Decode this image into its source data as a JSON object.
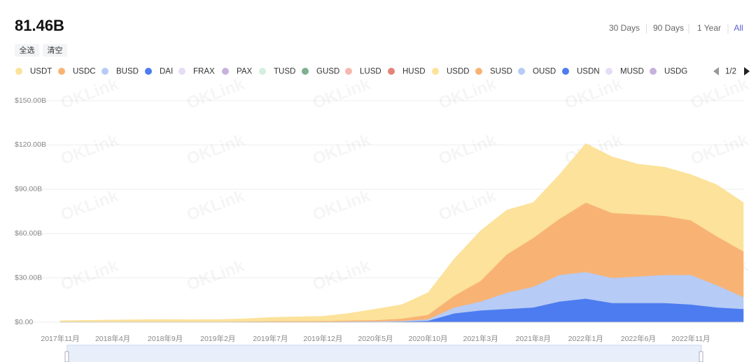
{
  "header": {
    "total": "81.46B",
    "select_all": "全选",
    "clear": "清空",
    "ranges": [
      "30 Days",
      "90 Days",
      "1 Year",
      "All"
    ],
    "legend_page": "1/2",
    "watermark": "OKLink"
  },
  "chart_data": {
    "type": "stacked-area",
    "categories": [
      "2017年11月",
      null,
      "2018年4月",
      null,
      "2018年9月",
      null,
      "2019年2月",
      null,
      "2019年7月",
      null,
      "2019年12月",
      null,
      "2020年5月",
      null,
      "2020年10月",
      null,
      "2021年3月",
      null,
      "2021年8月",
      null,
      "2022年1月",
      null,
      "2022年6月",
      null,
      "2022年11月",
      null,
      null
    ],
    "series": [
      {
        "name": "USDT",
        "color": "#fce29a",
        "values": [
          1.0,
          1.3,
          1.5,
          1.6,
          1.5,
          1.3,
          1.4,
          1.8,
          2.5,
          3.0,
          3.2,
          4.8,
          7.5,
          9.5,
          15,
          25,
          34,
          30,
          24,
          30,
          40,
          38,
          34,
          33,
          31,
          35,
          33
        ]
      },
      {
        "name": "USDC",
        "color": "#f8b374",
        "values": [
          0,
          0,
          0,
          0.1,
          0.2,
          0.3,
          0.3,
          0.4,
          0.5,
          0.5,
          0.5,
          0.7,
          0.8,
          1.5,
          3,
          8,
          14,
          26,
          33,
          38,
          47,
          44,
          42,
          40,
          37,
          33,
          31
        ]
      },
      {
        "name": "BUSD",
        "color": "#b6cbf5",
        "values": [
          0,
          0,
          0,
          0,
          0,
          0,
          0,
          0,
          0.1,
          0.1,
          0.2,
          0.3,
          0.3,
          0.4,
          1,
          4,
          6,
          11,
          14,
          18,
          18,
          17,
          18,
          19,
          20,
          15,
          8
        ]
      },
      {
        "name": "DAI",
        "color": "#4d7cf0",
        "values": [
          0,
          0,
          0,
          0,
          0.1,
          0.1,
          0.1,
          0.1,
          0.1,
          0.1,
          0.1,
          0.2,
          0.3,
          0.5,
          1,
          6,
          8,
          9,
          10,
          14,
          16,
          13,
          13,
          13,
          12,
          10,
          9
        ]
      },
      {
        "name": "FRAX",
        "color": "#e6dcf5"
      },
      {
        "name": "PAX",
        "color": "#c7b1dd"
      },
      {
        "name": "TUSD",
        "color": "#d3efdf"
      },
      {
        "name": "GUSD",
        "color": "#7fb08f"
      },
      {
        "name": "LUSD",
        "color": "#f6b8b0"
      },
      {
        "name": "HUSD",
        "color": "#e5837a"
      },
      {
        "name": "USDD",
        "color": "#fce29a"
      },
      {
        "name": "SUSD",
        "color": "#f8b374"
      },
      {
        "name": "OUSD",
        "color": "#b6cbf5"
      },
      {
        "name": "USDN",
        "color": "#4d7cf0"
      },
      {
        "name": "MUSD",
        "color": "#e6dcf5"
      },
      {
        "name": "USDG",
        "color": "#c7b1dd"
      }
    ],
    "ylim": [
      0,
      150
    ],
    "yticks": [
      {
        "value": 0,
        "label": "$0.00"
      },
      {
        "value": 30,
        "label": "$30.00B"
      },
      {
        "value": 60,
        "label": "$60.00B"
      },
      {
        "value": 90,
        "label": "$90.00B"
      },
      {
        "value": 120,
        "label": "$120.00B"
      },
      {
        "value": 150,
        "label": "$150.00B"
      }
    ],
    "grid": true
  }
}
